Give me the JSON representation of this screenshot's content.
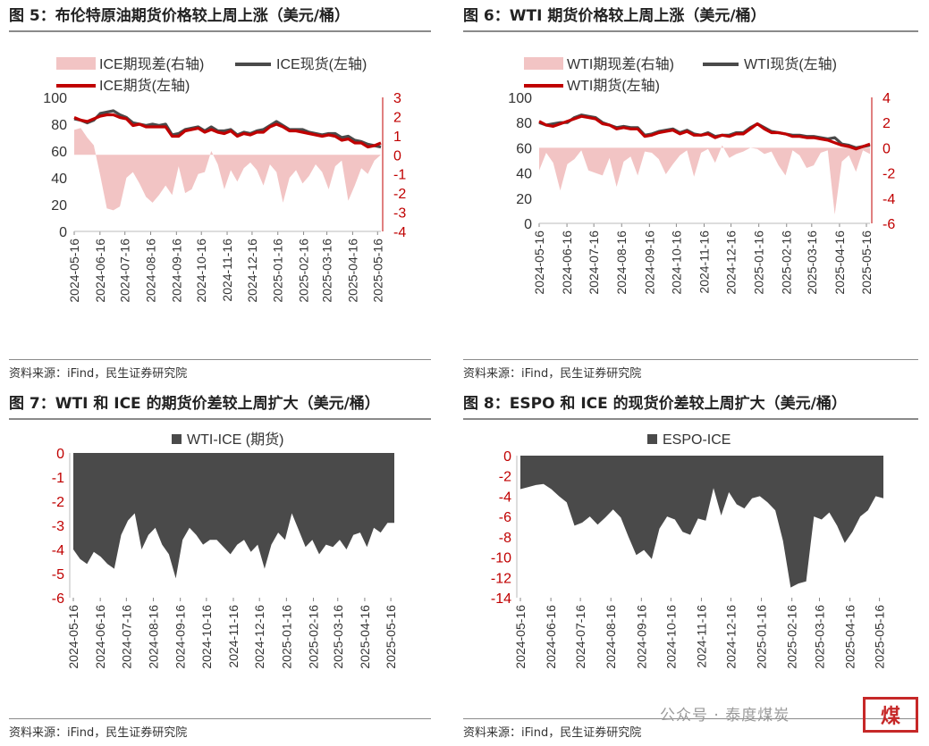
{
  "xticks": [
    "2024-05-16",
    "2024-06-16",
    "2024-07-16",
    "2024-08-16",
    "2024-09-16",
    "2024-10-16",
    "2024-11-16",
    "2024-12-16",
    "2025-01-16",
    "2025-02-16",
    "2025-03-16",
    "2025-04-16",
    "2025-05-16"
  ],
  "source": "资料来源：iFind，民生证券研究院",
  "watermark": {
    "text": "公众号 · 泰度煤炭",
    "logo": "煤"
  },
  "colors": {
    "spot": "#4a4a4a",
    "futures": "#c00000",
    "spread_fill": "#f2c4c4",
    "area_fill": "#4a4a4a",
    "axis_right": "#c00000"
  },
  "chart_data": [
    {
      "type": "line",
      "title": "图 5：布伦特原油期货价格较上周上涨（美元/桶）",
      "legend": [
        "ICE期现差(右轴)",
        "ICE现货(左轴)",
        "ICE期货(左轴)"
      ],
      "ylim_left": [
        0,
        100
      ],
      "yticks_left": [
        "100",
        "80",
        "60",
        "40",
        "20",
        "0"
      ],
      "ylim_right": [
        -4,
        3
      ],
      "yticks_right": [
        "3",
        "2",
        "1",
        "0",
        "-1",
        "-2",
        "-3",
        "-4"
      ],
      "x_start": "2024-05-16",
      "x_end": "2025-05-20",
      "series": [
        {
          "name": "ICE期现差(右轴)",
          "axis": "right",
          "kind": "area",
          "values": [
            1.3,
            1.4,
            0.9,
            0.5,
            -1.1,
            -2.8,
            -2.9,
            -2.7,
            -1.2,
            -0.9,
            -1.5,
            -2.2,
            -2.5,
            -2.1,
            -1.6,
            -2.1,
            -0.6,
            -2.0,
            -1.8,
            -1.0,
            -0.9,
            0.2,
            -0.5,
            -1.8,
            -0.8,
            -1.4,
            -0.7,
            -0.4,
            -0.8,
            -1.6,
            -0.5,
            -0.9,
            -2.5,
            -1.2,
            -0.8,
            -1.5,
            -1.1,
            -0.5,
            -0.9,
            -1.8,
            -0.6,
            -0.3,
            -2.4,
            -1.6,
            -0.7,
            -1.0,
            -0.3,
            0.0
          ]
        },
        {
          "name": "ICE现货(左轴)",
          "axis": "left",
          "kind": "line",
          "values": [
            84,
            83,
            81,
            83,
            88,
            89,
            90,
            87,
            85,
            81,
            80,
            79,
            80,
            79,
            80,
            72,
            73,
            76,
            77,
            78,
            75,
            78,
            75,
            75,
            76,
            72,
            74,
            73,
            75,
            76,
            79,
            82,
            79,
            76,
            76,
            76,
            74,
            73,
            72,
            73,
            73,
            70,
            71,
            68,
            67,
            65,
            64,
            63
          ]
        },
        {
          "name": "ICE期货(左轴)",
          "axis": "left",
          "kind": "line",
          "values": [
            85,
            83,
            82,
            84,
            86,
            87,
            87,
            85,
            84,
            79,
            80,
            78,
            78,
            78,
            78,
            71,
            71,
            75,
            76,
            77,
            74,
            76,
            74,
            73,
            75,
            71,
            73,
            72,
            74,
            74,
            78,
            80,
            78,
            75,
            75,
            74,
            73,
            72,
            71,
            72,
            71,
            68,
            69,
            66,
            66,
            63,
            64,
            66
          ]
        }
      ]
    },
    {
      "type": "line",
      "title": "图 6：WTI 期货价格较上周上涨（美元/桶）",
      "legend": [
        "WTI期现差(右轴)",
        "WTI现货(左轴)",
        "WTI期货(左轴)"
      ],
      "ylim_left": [
        0,
        100
      ],
      "yticks_left": [
        "100",
        "80",
        "60",
        "40",
        "20",
        "0"
      ],
      "ylim_right": [
        -6,
        4
      ],
      "yticks_right": [
        "4",
        "2",
        "0",
        "-2",
        "-4",
        "-6"
      ],
      "x_start": "2024-05-16",
      "x_end": "2025-05-20",
      "series": [
        {
          "name": "WTI期现差(右轴)",
          "axis": "right",
          "kind": "area",
          "values": [
            -1.8,
            -0.4,
            -1.2,
            -3.4,
            -1.3,
            -0.9,
            -0.2,
            -1.8,
            -2.0,
            -2.2,
            -0.8,
            -3.1,
            -1.1,
            -0.7,
            -2.2,
            -0.3,
            -0.4,
            -0.9,
            -2.1,
            -1.3,
            -0.6,
            -0.2,
            -2.3,
            -0.4,
            -0.1,
            -1.2,
            0.2,
            -0.8,
            -0.5,
            -0.3,
            0.0,
            -0.1,
            -0.5,
            -0.3,
            -1.4,
            -2.2,
            -0.2,
            -0.6,
            -1.6,
            -1.4,
            -0.4,
            -0.2,
            -5.3,
            -1.1,
            -0.6,
            -1.9,
            -0.2,
            -0.5
          ]
        },
        {
          "name": "WTI现货(左轴)",
          "axis": "left",
          "kind": "line",
          "values": [
            80,
            78,
            79,
            80,
            80,
            84,
            86,
            85,
            84,
            80,
            78,
            76,
            77,
            76,
            76,
            70,
            71,
            73,
            74,
            75,
            72,
            74,
            71,
            70,
            72,
            69,
            70,
            70,
            72,
            72,
            76,
            79,
            76,
            73,
            72,
            71,
            70,
            70,
            69,
            69,
            68,
            67,
            68,
            63,
            62,
            60,
            61,
            62
          ]
        },
        {
          "name": "WTI期货(左轴)",
          "axis": "left",
          "kind": "line",
          "values": [
            81,
            78,
            77,
            79,
            81,
            83,
            85,
            84,
            83,
            79,
            78,
            75,
            76,
            75,
            75,
            69,
            70,
            72,
            73,
            74,
            71,
            73,
            70,
            70,
            71,
            68,
            70,
            69,
            71,
            71,
            75,
            79,
            75,
            72,
            72,
            71,
            69,
            69,
            68,
            68,
            67,
            66,
            64,
            62,
            61,
            59,
            61,
            63
          ]
        }
      ]
    },
    {
      "type": "area",
      "title": "图 7：WTI 和 ICE 的期货价差较上周扩大（美元/桶）",
      "legend": [
        "WTI-ICE (期货)"
      ],
      "ylim": [
        -6,
        0
      ],
      "yticks": [
        "0",
        "-1",
        "-2",
        "-3",
        "-4",
        "-5",
        "-6"
      ],
      "x_start": "2024-05-16",
      "x_end": "2025-05-20",
      "series": [
        {
          "name": "WTI-ICE (期货)",
          "values": [
            -4.0,
            -4.4,
            -4.6,
            -4.1,
            -4.3,
            -4.6,
            -4.8,
            -3.4,
            -2.8,
            -2.5,
            -4.0,
            -3.4,
            -3.1,
            -3.8,
            -4.2,
            -5.2,
            -3.6,
            -3.1,
            -3.4,
            -3.8,
            -3.6,
            -3.6,
            -3.9,
            -4.2,
            -3.8,
            -3.6,
            -4.1,
            -3.8,
            -4.8,
            -3.8,
            -3.3,
            -3.6,
            -2.5,
            -3.2,
            -3.9,
            -3.6,
            -4.2,
            -3.8,
            -3.9,
            -3.6,
            -4.0,
            -3.4,
            -3.3,
            -3.9,
            -3.1,
            -3.3,
            -2.9,
            -2.9
          ]
        }
      ]
    },
    {
      "type": "area",
      "title": "图 8：ESPO 和 ICE 的现货价差较上周扩大（美元/桶）",
      "legend": [
        "ESPO-ICE"
      ],
      "ylim": [
        -14,
        0
      ],
      "yticks": [
        "0",
        "-2",
        "-4",
        "-6",
        "-8",
        "-10",
        "-12",
        "-14"
      ],
      "x_start": "2024-05-16",
      "x_end": "2025-05-20",
      "series": [
        {
          "name": "ESPO-ICE",
          "values": [
            -3.3,
            -3.1,
            -2.9,
            -2.8,
            -3.3,
            -4.0,
            -4.6,
            -6.9,
            -6.6,
            -6.0,
            -6.8,
            -6.1,
            -5.3,
            -6.1,
            -8.0,
            -9.8,
            -9.3,
            -10.2,
            -7.2,
            -6.0,
            -6.3,
            -7.5,
            -7.8,
            -6.2,
            -6.4,
            -3.2,
            -5.9,
            -3.6,
            -4.8,
            -5.2,
            -4.2,
            -4.0,
            -4.6,
            -5.4,
            -8.4,
            -13.0,
            -12.6,
            -12.4,
            -6.0,
            -6.3,
            -5.6,
            -6.9,
            -8.6,
            -7.5,
            -6.0,
            -5.4,
            -4.0,
            -4.2
          ]
        }
      ]
    }
  ]
}
